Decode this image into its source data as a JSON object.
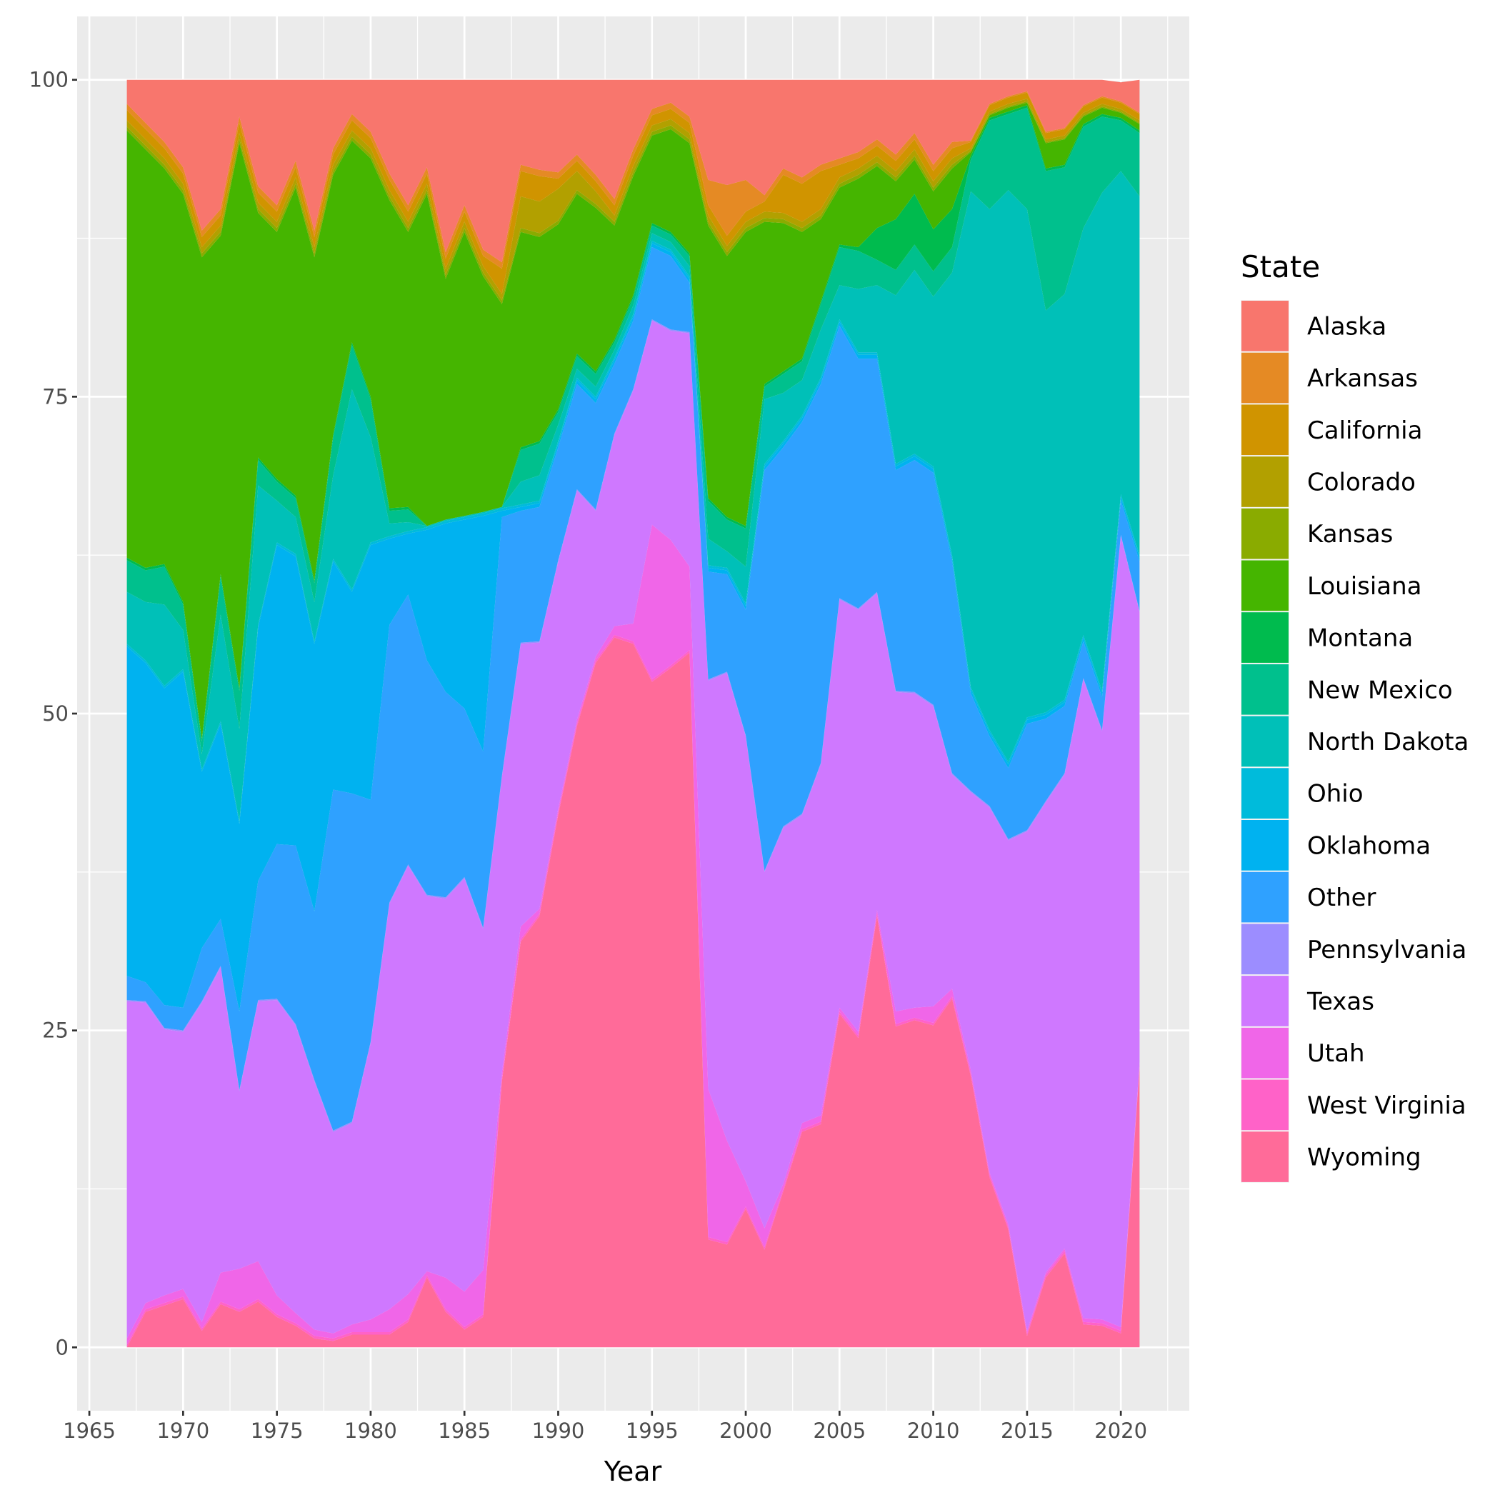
{
  "chart_data": {
    "type": "area",
    "stacked": true,
    "title": "",
    "xlabel": "Year",
    "ylabel": "",
    "xlim": [
      1964.35,
      2023.65
    ],
    "ylim": [
      -5,
      105
    ],
    "x_ticks": [
      1965,
      1970,
      1975,
      1980,
      1985,
      1990,
      1995,
      2000,
      2005,
      2010,
      2015,
      2020
    ],
    "y_ticks": [
      0,
      25,
      50,
      75,
      100
    ],
    "grid": true,
    "legend": {
      "title": "State",
      "placement": "right"
    },
    "x": [
      1967,
      1968,
      1969,
      1970,
      1971,
      1972,
      1973,
      1974,
      1975,
      1976,
      1977,
      1978,
      1979,
      1980,
      1981,
      1982,
      1983,
      1984,
      1985,
      1986,
      1987,
      1988,
      1989,
      1990,
      1991,
      1992,
      1993,
      1994,
      1995,
      1996,
      1997,
      1998,
      1999,
      2000,
      2001,
      2002,
      2003,
      2004,
      2005,
      2006,
      2007,
      2008,
      2009,
      2010,
      2011,
      2012,
      2013,
      2014,
      2015,
      2016,
      2017,
      2018,
      2019,
      2020,
      2021
    ],
    "series": [
      {
        "name": "Alaska",
        "color": "#F8766D",
        "values": [
          1.9,
          3.4,
          4.9,
          6.9,
          11.9,
          10.2,
          2.9,
          8.4,
          9.9,
          6.4,
          11.9,
          5.4,
          2.7,
          4.1,
          7.4,
          9.9,
          6.9,
          13.6,
          9.9,
          13.4,
          14.4,
          6.7,
          7.1,
          7.3,
          5.9,
          7.5,
          9.4,
          5.5,
          2.3,
          1.8,
          2.9,
          7.9,
          8.3,
          7.9,
          9.1,
          7.0,
          7.7,
          6.7,
          6.2,
          5.7,
          4.7,
          5.9,
          4.2,
          6.7,
          4.9,
          4.8,
          1.9,
          1.3,
          0.9,
          4.1,
          3.8,
          2.0,
          1.3,
          1.5,
          2.6
        ]
      },
      {
        "name": "Arkansas",
        "color": "#E58A24",
        "values": [
          0.5,
          0.5,
          0.5,
          0.5,
          0.5,
          0.5,
          0.5,
          0.5,
          0.5,
          0.5,
          0.5,
          0.5,
          0.5,
          0.5,
          0.5,
          0.5,
          0.5,
          0.5,
          0.5,
          0.5,
          0.5,
          0.5,
          0.5,
          0.5,
          0.5,
          0.5,
          0.5,
          0.5,
          0.5,
          0.5,
          0.5,
          2,
          4,
          2.5,
          0.5,
          0.5,
          0.5,
          0.5,
          0.5,
          0.5,
          0.5,
          0.5,
          0.5,
          0.5,
          0.5,
          0.1,
          0.1,
          0.1,
          0.1,
          0.1,
          0.1,
          0.1,
          0.1,
          0.1,
          0.1
        ]
      },
      {
        "name": "California",
        "color": "#D09400",
        "values": [
          0.8,
          0.8,
          0.8,
          0.8,
          0.8,
          0.8,
          0.8,
          0.8,
          0.8,
          0.8,
          0.8,
          0.8,
          0.8,
          0.8,
          0.8,
          0.8,
          0.8,
          0.8,
          0.8,
          0.8,
          2,
          2,
          2,
          0.8,
          0.8,
          0.8,
          0.8,
          0.8,
          0.8,
          0.8,
          0.8,
          0.8,
          0.8,
          0.8,
          0.8,
          3,
          3,
          3,
          1,
          0.8,
          0.8,
          0.8,
          0.8,
          0.8,
          0.8,
          0.5,
          0.5,
          0.5,
          0.5,
          0.5,
          0.5,
          0.5,
          0.5,
          0.5,
          0.5
        ]
      },
      {
        "name": "Colorado",
        "color": "#B2A000",
        "values": [
          0.5,
          0.5,
          0.5,
          0.5,
          0.5,
          0.5,
          0.5,
          0.5,
          0.5,
          0.5,
          0.5,
          0.5,
          0.5,
          0.5,
          0.5,
          0.5,
          0.5,
          0.5,
          0.5,
          0.5,
          0.5,
          2.5,
          2.5,
          2.5,
          1.5,
          1.0,
          0.5,
          0.5,
          0.5,
          0.5,
          0.5,
          0.5,
          0.5,
          0.5,
          0.5,
          0.5,
          0.5,
          0.5,
          0.5,
          0.5,
          0.5,
          0.5,
          0.5,
          0.5,
          0.5,
          0.2,
          0.2,
          0.2,
          0.2,
          0.2,
          0.2,
          0.2,
          0.2,
          0.2,
          0.2
        ]
      },
      {
        "name": "Kansas",
        "color": "#8AAB00",
        "values": [
          0.3,
          0.3,
          0.3,
          0.3,
          0.3,
          0.3,
          0.3,
          0.3,
          0.3,
          0.3,
          0.3,
          0.3,
          0.3,
          0.3,
          0.3,
          0.3,
          0.3,
          0.3,
          0.3,
          0.3,
          0.3,
          0.3,
          0.3,
          0.3,
          0.3,
          0.3,
          0.3,
          0.3,
          0.3,
          0.3,
          0.3,
          0.3,
          0.3,
          0.3,
          0.3,
          0.3,
          0.3,
          0.3,
          0.3,
          0.3,
          0.3,
          0.3,
          0.3,
          0.3,
          0.3,
          0.1,
          0.1,
          0.1,
          0.1,
          0.1,
          0.1,
          0.1,
          0.1,
          0.1,
          0.1
        ]
      },
      {
        "name": "Louisiana",
        "color": "#45B500",
        "values": [
          33.7,
          33.0,
          31.2,
          32.2,
          38.0,
          26.7,
          43.0,
          19.3,
          19.5,
          24.3,
          25.5,
          20.5,
          15.9,
          18.8,
          24.3,
          21.7,
          26.2,
          19.0,
          22.4,
          18.6,
          16.0,
          17.0,
          16.1,
          14.6,
          12.6,
          12.9,
          9.0,
          9.4,
          6.9,
          8.1,
          8.7,
          21.5,
          20.6,
          23.2,
          12.8,
          11.7,
          10.0,
          6.5,
          4.5,
          5.4,
          4.9,
          3.0,
          2.7,
          3.0,
          3.2,
          0.3,
          0.2,
          0.3,
          0.2,
          2.0,
          2.0,
          0.6,
          0.5,
          0.4,
          0.5
        ]
      },
      {
        "name": "Montana",
        "color": "#00BB4E",
        "values": [
          0.2,
          0.2,
          0.2,
          0.2,
          0.2,
          0.2,
          0.2,
          0.2,
          0.2,
          0.2,
          0.2,
          0.2,
          0.2,
          0.2,
          0.2,
          0.2,
          0,
          0,
          0,
          0,
          0,
          0.2,
          0.2,
          0.2,
          0.2,
          0.2,
          0.2,
          0.2,
          0.2,
          0.2,
          0.2,
          0.2,
          0.2,
          0.2,
          0.2,
          0.2,
          0.2,
          0.2,
          0.2,
          0.3,
          2.5,
          4,
          4,
          3.3,
          3,
          0.3,
          0.2,
          0.2,
          0.2,
          0.2,
          0.2,
          0.2,
          0.2,
          0.2,
          0.2
        ]
      },
      {
        "name": "New Mexico",
        "color": "#00C08D",
        "values": [
          2.5,
          2.5,
          3,
          2,
          1,
          3,
          3,
          2,
          1.5,
          1.5,
          1.5,
          3,
          3.5,
          3,
          1,
          1,
          0,
          0,
          0,
          0,
          0,
          2.5,
          2.5,
          1,
          1,
          1,
          0.6,
          0.6,
          0.6,
          0.6,
          0.8,
          3,
          2.5,
          3,
          1,
          1.5,
          1.5,
          2,
          3,
          3,
          2,
          2,
          2,
          2,
          2,
          2.5,
          7,
          6,
          8,
          11,
          10,
          8,
          6,
          4,
          5
        ]
      },
      {
        "name": "North Dakota",
        "color": "#00C0B8",
        "values": [
          4.1,
          4.6,
          6.4,
          3.1,
          1.2,
          8.4,
          7.3,
          11.0,
          3.3,
          2.9,
          3.1,
          6.6,
          15.8,
          8.3,
          1.0,
          0.7,
          0.1,
          0.1,
          0.1,
          0.1,
          0.1,
          1.8,
          2.0,
          1.3,
          0.7,
          0.8,
          0.6,
          0.7,
          0.6,
          0.6,
          0.8,
          2.1,
          1.3,
          2.9,
          5.1,
          3.8,
          2.8,
          3.8,
          2.7,
          5.0,
          5.3,
          13.3,
          14.5,
          13.4,
          22.3,
          39.1,
          41.1,
          45.1,
          40.1,
          31.7,
          32.0,
          32.1,
          39.3,
          25.5,
          28.3
        ]
      },
      {
        "name": "Ohio",
        "color": "#00BBDB",
        "values": [
          0.2,
          0.2,
          0.2,
          0.2,
          0.2,
          0.2,
          0.2,
          0.2,
          0.2,
          0.2,
          0.2,
          0.2,
          0.2,
          0.2,
          0.2,
          0.2,
          0.2,
          0.2,
          0.2,
          0.2,
          0.2,
          0.2,
          0.2,
          0.2,
          0.2,
          0.2,
          0.2,
          0.2,
          0.2,
          0.2,
          0.2,
          0.2,
          0.2,
          0.2,
          0.2,
          0.2,
          0.2,
          0.2,
          0.2,
          0.2,
          0.2,
          0.2,
          0.2,
          0.2,
          0.2,
          0.2,
          0.2,
          0.2,
          0.2,
          0.2,
          0.2,
          0.2,
          0.2,
          0.2,
          0.2
        ]
      },
      {
        "name": "Oklahoma",
        "color": "#00B2F0",
        "values": [
          26.0,
          25.2,
          25.0,
          26.5,
          13.9,
          15.4,
          14.8,
          20.0,
          23.6,
          22.8,
          21.1,
          18.0,
          15.9,
          20.1,
          6.8,
          4.8,
          10.3,
          13.3,
          14.9,
          18.6,
          0.5,
          0.3,
          0.3,
          0.3,
          0.3,
          0.3,
          0.3,
          0.3,
          0.3,
          0.3,
          0.3,
          0.3,
          0.3,
          0.3,
          0.3,
          0.3,
          0.3,
          0.3,
          0.3,
          0.3,
          0.3,
          0.3,
          0.3,
          0.3,
          0.3,
          0.3,
          0.3,
          0.3,
          0.3,
          0.3,
          0.3,
          0.3,
          0.3,
          0.3,
          0.3
        ]
      },
      {
        "name": "Other",
        "color": "#2FA1FF",
        "values": [
          1.9,
          1.5,
          1.8,
          1.8,
          4.2,
          3.7,
          6.2,
          9.4,
          12.2,
          14.1,
          13.3,
          26.9,
          25.9,
          19.1,
          21.9,
          21.3,
          18.5,
          16.2,
          13.3,
          13.9,
          20.4,
          10.4,
          10.6,
          8.9,
          8.3,
          8.4,
          5.5,
          5.4,
          5.7,
          5.8,
          3.9,
          8.5,
          7.7,
          9.9,
          31.6,
          29.9,
          30.9,
          29.9,
          21.5,
          19.7,
          18.4,
          17.4,
          18.3,
          18.3,
          16.7,
          7.7,
          5.5,
          5.6,
          8.4,
          6.5,
          5.3,
          2.9,
          2.6,
          2.7,
          3.9
        ]
      },
      {
        "name": "Pennsylvania",
        "color": "#9C8DFF",
        "values": [
          0.1,
          0.1,
          0.1,
          0.1,
          0.1,
          0.1,
          0.1,
          0.1,
          0.1,
          0.1,
          0.1,
          0.1,
          0.1,
          0.1,
          0.1,
          0.1,
          0.1,
          0.1,
          0.1,
          0.1,
          0.1,
          0.1,
          0.1,
          0.1,
          0.1,
          0.1,
          0.1,
          0.1,
          0.1,
          0.1,
          0.1,
          0.1,
          0.1,
          0.1,
          0.1,
          0.1,
          0.1,
          0.1,
          0.1,
          0.1,
          0.1,
          0.1,
          0.1,
          0.1,
          0.1,
          0.1,
          0.1,
          0.1,
          0.1,
          0.1,
          0.1,
          0.1,
          0.1,
          0.1,
          0.1
        ]
      },
      {
        "name": "Texas",
        "color": "#CF78FF",
        "values": [
          26.6,
          23.7,
          21.0,
          20.3,
          25.2,
          24.1,
          14.0,
          20.5,
          23.3,
          22.7,
          19.6,
          15.9,
          15.9,
          21.8,
          32.0,
          33.8,
          29.6,
          29.9,
          32.6,
          26.9,
          23.3,
          22.3,
          21.0,
          19.5,
          18.1,
          11.5,
          15.1,
          18.4,
          16.1,
          16.5,
          18.4,
          32.2,
          36.9,
          35.1,
          28.1,
          28.1,
          24.3,
          27.7,
          32.2,
          33.3,
          25.0,
          25.2,
          24.8,
          23.7,
          16.9,
          21.9,
          28.8,
          30.3,
          39.4,
          37.1,
          37.4,
          50.4,
          46.4,
          62.4,
          35.5
        ]
      },
      {
        "name": "Utah",
        "color": "#F066E8",
        "values": [
          0.5,
          0.5,
          0.6,
          0.6,
          0.5,
          2.3,
          3.2,
          3.0,
          1.5,
          0.8,
          0.5,
          0.4,
          0.6,
          1.0,
          1.8,
          2.0,
          0.3,
          2.5,
          2.8,
          3.5,
          0.5,
          1.0,
          0.4,
          0.3,
          0.3,
          0.3,
          0.7,
          1.4,
          12.2,
          9.9,
          6.6,
          11.7,
          8.0,
          2.0,
          1.5,
          0.4,
          0.5,
          0.5,
          0.3,
          0.3,
          0.3,
          1.0,
          0.8,
          1.3,
          0.6,
          0.3,
          0.2,
          0.2,
          0.2,
          0.2,
          0.2,
          0.3,
          0.3,
          0.3,
          0.3
        ]
      },
      {
        "name": "West Virginia",
        "color": "#FF62C8",
        "values": [
          0.2,
          0.2,
          0.2,
          0.2,
          0.2,
          0.2,
          0.2,
          0.2,
          0.2,
          0.2,
          0.2,
          0.2,
          0.2,
          0.2,
          0.2,
          0.2,
          0.2,
          0.2,
          0.2,
          0.2,
          0.2,
          0.2,
          0.2,
          0.2,
          0.2,
          0.2,
          0.2,
          0.2,
          0.2,
          0.2,
          0.2,
          0.2,
          0.2,
          0.2,
          0.2,
          0.2,
          0.2,
          0.2,
          0.2,
          0.2,
          0.2,
          0.2,
          0.2,
          0.2,
          0.2,
          0.2,
          0.2,
          0.2,
          0.2,
          0.2,
          0.2,
          0.2,
          0.2,
          0.2,
          0.2
        ]
      },
      {
        "name": "Wyoming",
        "color": "#FF6B99",
        "values": [
          0,
          2.8,
          3.3,
          3.8,
          1.3,
          3.4,
          2.8,
          3.6,
          2.4,
          1.7,
          0.7,
          0.5,
          1.0,
          1.0,
          1.0,
          2.0,
          5.5,
          2.8,
          1.4,
          2.4,
          21,
          32,
          34,
          42,
          49,
          54,
          56,
          55.5,
          52.5,
          53.6,
          54.8,
          8.5,
          8.1,
          10.9,
          7.7,
          12.3,
          17,
          17.6,
          26.3,
          24.4,
          34,
          25.3,
          25.8,
          25.4,
          27.5,
          21.4,
          13.4,
          9.3,
          0.9,
          5.5,
          7.4,
          1.8,
          1.7,
          1.1,
          22
        ]
      }
    ]
  }
}
